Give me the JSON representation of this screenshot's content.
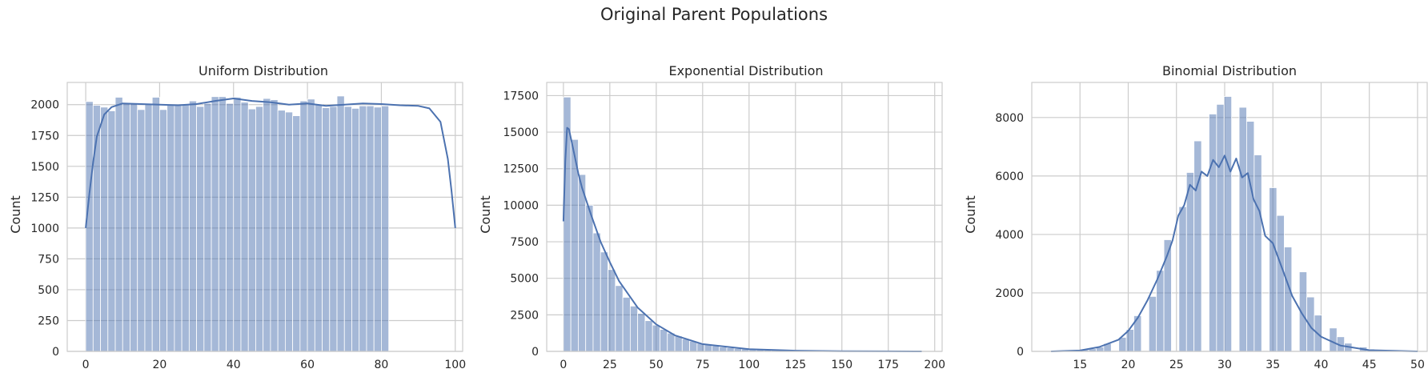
{
  "figure": {
    "suptitle": "Original Parent Populations"
  },
  "colors": {
    "bar_fill": "#4c72b0",
    "bar_opacity": 0.5,
    "kde_line": "#4c72b0",
    "grid": "#cccccc",
    "spine": "#cccccc",
    "background": "#ffffff"
  },
  "chart_data": [
    {
      "type": "bar",
      "title": "Uniform Distribution",
      "xlabel": "",
      "ylabel": "Count",
      "xlim": [
        -5,
        102
      ],
      "ylim": [
        0,
        2180
      ],
      "xticks": [
        0,
        20,
        40,
        60,
        80,
        100
      ],
      "yticks": [
        0,
        250,
        500,
        750,
        1000,
        1250,
        1500,
        1750,
        2000
      ],
      "grid": true,
      "bin_start": 0,
      "bin_width": 2,
      "values": [
        2025,
        1995,
        1980,
        1950,
        2060,
        2010,
        2005,
        1960,
        2010,
        2060,
        1960,
        1995,
        1995,
        2000,
        2030,
        1985,
        2010,
        2065,
        2065,
        2010,
        2060,
        2020,
        1965,
        1985,
        2050,
        2040,
        1955,
        1940,
        1910,
        2030,
        2045,
        2005,
        1975,
        1985,
        2070,
        1985,
        1970,
        1990,
        1990,
        1980,
        1990
      ],
      "kde": {
        "x": [
          0,
          1,
          2,
          3,
          5,
          7,
          10,
          15,
          20,
          25,
          30,
          35,
          40,
          45,
          50,
          55,
          60,
          65,
          70,
          75,
          80,
          85,
          90,
          93,
          96,
          98,
          99,
          100
        ],
        "y": [
          1000,
          1280,
          1530,
          1740,
          1920,
          1980,
          2010,
          2005,
          2000,
          1995,
          2005,
          2030,
          2050,
          2030,
          2020,
          2000,
          2010,
          1990,
          2000,
          2010,
          2005,
          1995,
          1990,
          1970,
          1860,
          1560,
          1300,
          1000
        ]
      }
    },
    {
      "type": "bar",
      "title": "Exponential Distribution",
      "xlabel": "",
      "ylabel": "Count",
      "xlim": [
        -9,
        204
      ],
      "ylim": [
        0,
        18400
      ],
      "xticks": [
        0,
        25,
        50,
        75,
        100,
        125,
        150,
        175,
        200
      ],
      "yticks": [
        0,
        2500,
        5000,
        7500,
        10000,
        12500,
        15000,
        17500
      ],
      "grid": true,
      "bin_start": 0,
      "bin_width": 4,
      "values": [
        17400,
        14500,
        12100,
        10000,
        8100,
        6800,
        5600,
        4500,
        3700,
        3100,
        2600,
        2100,
        1800,
        1500,
        1250,
        1050,
        850,
        700,
        560,
        460,
        380,
        300,
        250,
        200,
        165,
        130,
        105,
        85,
        70,
        55,
        45,
        37,
        30,
        24,
        20,
        16,
        13,
        10,
        8,
        6,
        5,
        4,
        3,
        3,
        2,
        2,
        1,
        1
      ],
      "kde": {
        "x": [
          0,
          1,
          2,
          3,
          5,
          8,
          10,
          15,
          20,
          25,
          30,
          40,
          50,
          60,
          75,
          100,
          125,
          150,
          175,
          193
        ],
        "y": [
          8900,
          13000,
          15300,
          15200,
          14000,
          12200,
          11200,
          9300,
          7500,
          6100,
          4800,
          3000,
          1850,
          1100,
          500,
          150,
          50,
          15,
          5,
          0
        ]
      }
    },
    {
      "type": "bar",
      "title": "Binomial Distribution",
      "xlabel": "",
      "ylabel": "Count",
      "xlim": [
        10,
        51
      ],
      "ylim": [
        0,
        9200
      ],
      "xticks": [
        15,
        20,
        25,
        30,
        35,
        40,
        45,
        50
      ],
      "yticks": [
        0,
        2000,
        4000,
        6000,
        8000
      ],
      "grid": true,
      "bin_start": 12,
      "bin_width": 0.78,
      "values": [
        5,
        10,
        20,
        40,
        60,
        90,
        150,
        270,
        0,
        480,
        750,
        1220,
        0,
        1880,
        2770,
        3820,
        0,
        4950,
        6120,
        7200,
        0,
        8120,
        8450,
        8720,
        0,
        8350,
        7870,
        6720,
        0,
        5600,
        4650,
        3570,
        0,
        2720,
        1860,
        1240,
        0,
        800,
        500,
        280,
        0,
        150,
        80,
        40,
        20,
        10,
        5,
        3
      ],
      "kde": {
        "x": [
          12,
          15,
          17,
          19,
          20,
          21,
          22,
          23,
          24,
          24.6,
          25.2,
          25.8,
          26.4,
          27,
          27.6,
          28.2,
          28.8,
          29.4,
          30,
          30.6,
          31.2,
          31.8,
          32.4,
          33,
          33.6,
          34.2,
          35,
          36,
          37,
          38,
          39,
          40,
          42,
          45,
          50
        ],
        "y": [
          0,
          30,
          150,
          400,
          700,
          1150,
          1750,
          2450,
          3250,
          3800,
          4650,
          5000,
          5700,
          5500,
          6150,
          6000,
          6550,
          6300,
          6700,
          6150,
          6600,
          5950,
          6100,
          5200,
          4800,
          3950,
          3700,
          2800,
          1900,
          1300,
          800,
          500,
          200,
          40,
          0
        ]
      }
    }
  ]
}
